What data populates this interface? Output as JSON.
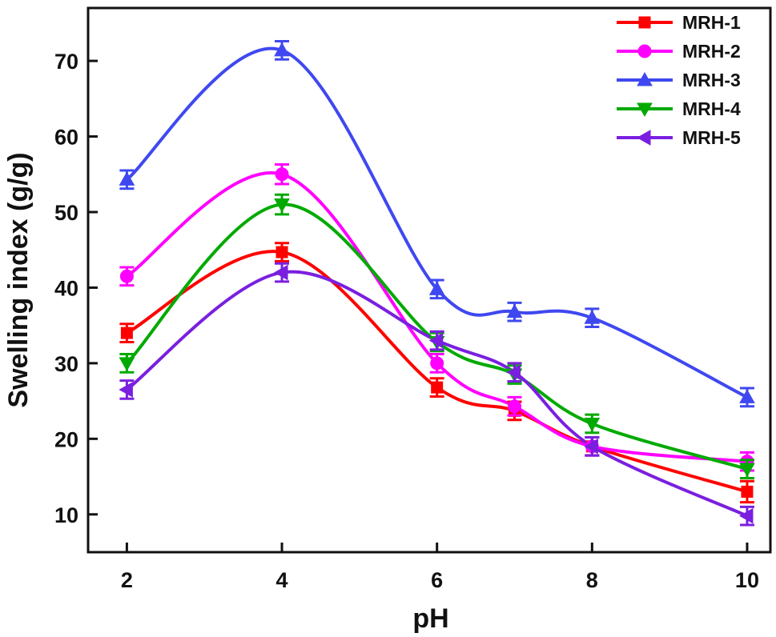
{
  "chart_data": {
    "type": "line",
    "xlabel": "pH",
    "ylabel": "Swelling index (g/g)",
    "xlim": [
      1.5,
      10.3
    ],
    "ylim": [
      5,
      77
    ],
    "x_ticks": [
      2,
      4,
      6,
      8,
      10
    ],
    "y_ticks": [
      10,
      20,
      30,
      40,
      50,
      60,
      70
    ],
    "grid": false,
    "legend_position": "top-right",
    "x": [
      2,
      4,
      6,
      7,
      8,
      10
    ],
    "series": [
      {
        "name": "MRH-1",
        "color": "#ff0000",
        "marker": "square",
        "values": [
          34,
          44.7,
          26.8,
          23.7,
          19,
          13
        ],
        "errors": [
          1.2,
          1.2,
          1.2,
          1.2,
          1.2,
          1.4
        ]
      },
      {
        "name": "MRH-2",
        "color": "#ff00ff",
        "marker": "circle",
        "values": [
          41.5,
          55,
          30,
          24.3,
          19,
          17
        ],
        "errors": [
          1.2,
          1.3,
          1.2,
          1.2,
          1.2,
          1.2
        ]
      },
      {
        "name": "MRH-3",
        "color": "#3f48f0",
        "marker": "triangle-up",
        "values": [
          54.3,
          71.4,
          39.8,
          36.8,
          36,
          25.5
        ],
        "errors": [
          1.2,
          1.2,
          1.2,
          1.2,
          1.2,
          1.2
        ]
      },
      {
        "name": "MRH-4",
        "color": "#00aa00",
        "marker": "triangle-down",
        "values": [
          30,
          51,
          32.8,
          28.5,
          22,
          16
        ],
        "errors": [
          1.2,
          1.3,
          1.2,
          1.2,
          1.2,
          1.2
        ]
      },
      {
        "name": "MRH-5",
        "color": "#7a1fe0",
        "marker": "triangle-left",
        "values": [
          26.5,
          42,
          33,
          28.8,
          19,
          9.8
        ],
        "errors": [
          1.2,
          1.2,
          1.2,
          1.2,
          1.2,
          1.2
        ]
      }
    ]
  }
}
